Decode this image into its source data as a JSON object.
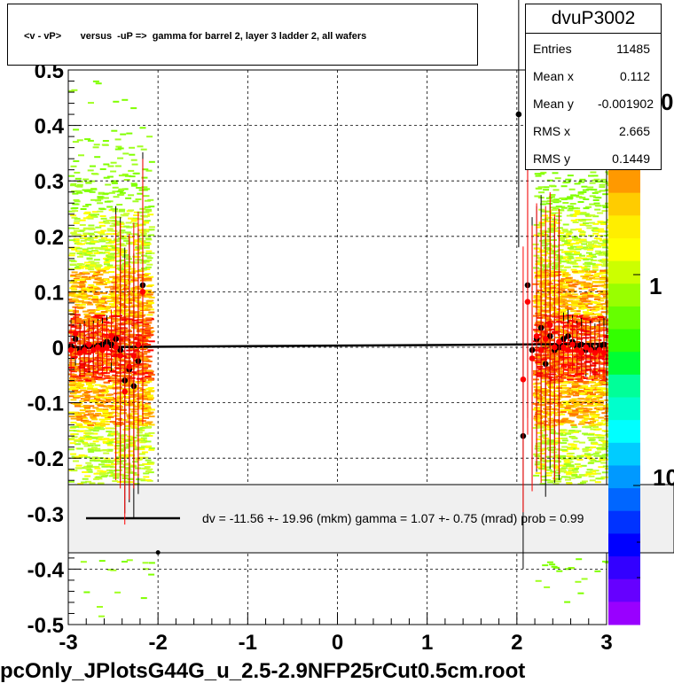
{
  "chart_data": {
    "type": "scatter",
    "title": "<v - vP>       versus  -uP =>  gamma for barrel 2, layer 3 ladder 2, all wafers",
    "xlabel": "",
    "ylabel": "",
    "xlim": [
      -3,
      3
    ],
    "ylim": [
      -0.5,
      0.5
    ],
    "x_ticks": [
      "-3",
      "-2",
      "-1",
      "0",
      "1",
      "2",
      "3"
    ],
    "y_ticks": [
      "-0.5",
      "-0.4",
      "-0.3",
      "-0.2",
      "-0.1",
      "0",
      "0.1",
      "0.2",
      "0.3",
      "0.4",
      "0.5"
    ],
    "grid": true,
    "color_scale_labels": [
      "1",
      "10"
    ],
    "series": [
      {
        "color": "#000000",
        "points": [
          {
            "x": -2.97,
            "y": 0.002
          },
          {
            "x": -2.92,
            "y": 0.015
          },
          {
            "x": -2.87,
            "y": -0.005
          },
          {
            "x": -2.82,
            "y": 0.0
          },
          {
            "x": -2.77,
            "y": 0.002
          },
          {
            "x": -2.72,
            "y": 0.0
          },
          {
            "x": -2.67,
            "y": 0.003
          },
          {
            "x": -2.62,
            "y": 0.005
          },
          {
            "x": -2.57,
            "y": 0.01
          },
          {
            "x": -2.52,
            "y": 0.005
          },
          {
            "x": -2.47,
            "y": 0.015
          },
          {
            "x": -2.42,
            "y": -0.005
          },
          {
            "x": -2.37,
            "y": -0.06
          },
          {
            "x": -2.32,
            "y": -0.04
          },
          {
            "x": -2.27,
            "y": -0.07
          },
          {
            "x": -2.22,
            "y": -0.025
          },
          {
            "x": -2.17,
            "y": 0.112
          },
          {
            "x": 2.02,
            "y": 0.42
          },
          {
            "x": 2.07,
            "y": -0.16
          },
          {
            "x": 2.12,
            "y": 0.112
          },
          {
            "x": 2.17,
            "y": -0.005
          },
          {
            "x": 2.22,
            "y": 0.015
          },
          {
            "x": 2.27,
            "y": 0.035
          },
          {
            "x": 2.32,
            "y": -0.03
          },
          {
            "x": 2.37,
            "y": 0.02
          },
          {
            "x": 2.42,
            "y": -0.005
          },
          {
            "x": 2.47,
            "y": 0.0
          },
          {
            "x": 2.52,
            "y": 0.015
          },
          {
            "x": 2.57,
            "y": 0.02
          },
          {
            "x": 2.62,
            "y": 0.01
          },
          {
            "x": 2.67,
            "y": 0.0
          },
          {
            "x": 2.72,
            "y": 0.005
          },
          {
            "x": 2.77,
            "y": -0.005
          },
          {
            "x": 2.82,
            "y": 0.0
          },
          {
            "x": 2.87,
            "y": -0.005
          },
          {
            "x": 2.92,
            "y": 0.0
          },
          {
            "x": 2.97,
            "y": 0.005
          }
        ]
      },
      {
        "color": "#ff0000",
        "points": [
          {
            "x": -2.97,
            "y": -0.005
          },
          {
            "x": -2.92,
            "y": 0.025
          },
          {
            "x": -2.87,
            "y": -0.01
          },
          {
            "x": -2.82,
            "y": -0.005
          },
          {
            "x": -2.77,
            "y": 0.005
          },
          {
            "x": -2.72,
            "y": -0.005
          },
          {
            "x": -2.67,
            "y": 0.0
          },
          {
            "x": -2.62,
            "y": -0.005
          },
          {
            "x": -2.57,
            "y": 0.0
          },
          {
            "x": -2.52,
            "y": 0.02
          },
          {
            "x": -2.47,
            "y": 0.0
          },
          {
            "x": -2.42,
            "y": -0.015
          },
          {
            "x": -2.37,
            "y": -0.08
          },
          {
            "x": -2.32,
            "y": -0.035
          },
          {
            "x": -2.27,
            "y": -0.015
          },
          {
            "x": -2.22,
            "y": 0.005
          },
          {
            "x": -2.17,
            "y": 0.1
          },
          {
            "x": 2.07,
            "y": -0.058
          },
          {
            "x": 2.12,
            "y": 0.082
          },
          {
            "x": 2.17,
            "y": -0.02
          },
          {
            "x": 2.22,
            "y": 0.02
          },
          {
            "x": 2.27,
            "y": -0.005
          },
          {
            "x": 2.32,
            "y": 0.015
          },
          {
            "x": 2.37,
            "y": 0.04
          },
          {
            "x": 2.42,
            "y": 0.0
          },
          {
            "x": 2.47,
            "y": 0.01
          },
          {
            "x": 2.52,
            "y": 0.0
          },
          {
            "x": 2.57,
            "y": -0.005
          },
          {
            "x": 2.62,
            "y": 0.005
          },
          {
            "x": 2.67,
            "y": -0.005
          },
          {
            "x": 2.72,
            "y": -0.01
          },
          {
            "x": 2.77,
            "y": 0.0
          },
          {
            "x": 2.82,
            "y": -0.005
          },
          {
            "x": 2.87,
            "y": -0.01
          },
          {
            "x": 2.92,
            "y": -0.005
          },
          {
            "x": 2.97,
            "y": -0.01
          }
        ]
      }
    ],
    "fit_line": {
      "x": [
        -3,
        3
      ],
      "y": [
        0.0,
        0.006
      ]
    },
    "markers": [
      {
        "x": -2.0,
        "y": -0.37
      }
    ]
  },
  "stats": {
    "name": "dvuP3002",
    "rows": [
      {
        "key": "Entries",
        "value": "11485"
      },
      {
        "key": "Mean x",
        "value": "0.112"
      },
      {
        "key": "Mean y",
        "value": "-0.001902"
      },
      {
        "key": "RMS x",
        "value": "2.665"
      },
      {
        "key": "RMS y",
        "value": "0.1449"
      }
    ]
  },
  "legend": {
    "text": "dv =  -11.56 +-  19.96 (mkm) gamma =    1.07 +-  0.75 (mrad) prob = 0.99"
  },
  "colorbar_label_top": "0",
  "bottom_label": "pcOnly_JPlotsG44G_u_2.5-2.9NFP25rCut0.5cm.root",
  "colors": {
    "grid": "#000000",
    "legend_bg": "#f0f0f0"
  }
}
